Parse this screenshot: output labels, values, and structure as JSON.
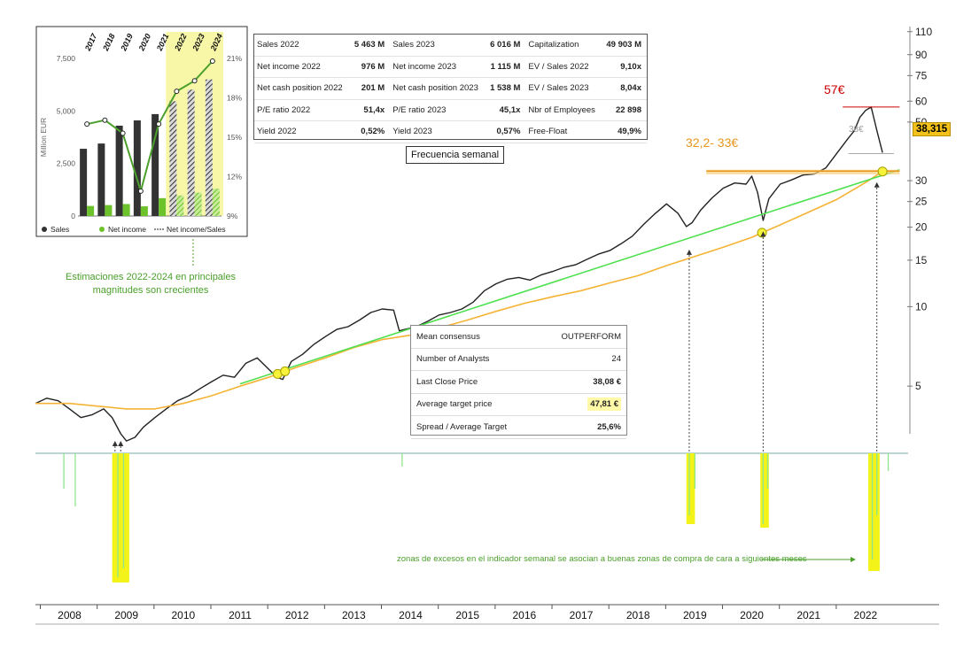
{
  "chart_data": [
    {
      "type": "line",
      "title": "",
      "frequency_label": "Frecuencia semanal",
      "y_scale": "log",
      "ylim": [
        3.3,
        115
      ],
      "xlim": [
        2007.4,
        2022.75
      ],
      "x_ticks": [
        "2008",
        "2009",
        "2010",
        "2011",
        "2012",
        "2013",
        "2014",
        "2015",
        "2016",
        "2017",
        "2018",
        "2019",
        "2020",
        "2021",
        "2022"
      ],
      "y_ticks": [
        "110",
        "90",
        "75",
        "60",
        "50",
        "30",
        "25",
        "20",
        "15",
        "10",
        "5"
      ],
      "series": [
        {
          "role": "price",
          "color": "#222222",
          "x": [
            2007.4,
            2007.6,
            2007.8,
            2008.0,
            2008.2,
            2008.4,
            2008.6,
            2008.75,
            2008.9,
            2009.0,
            2009.15,
            2009.3,
            2009.5,
            2009.7,
            2009.9,
            2010.1,
            2010.3,
            2010.5,
            2010.7,
            2010.9,
            2011.1,
            2011.3,
            2011.5,
            2011.65,
            2011.75,
            2011.9,
            2012.1,
            2012.3,
            2012.5,
            2012.7,
            2012.9,
            2013.1,
            2013.3,
            2013.5,
            2013.7,
            2013.8,
            2013.9,
            2014.1,
            2014.3,
            2014.5,
            2014.7,
            2014.9,
            2015.1,
            2015.3,
            2015.5,
            2015.7,
            2015.9,
            2016.1,
            2016.3,
            2016.5,
            2016.7,
            2016.9,
            2017.1,
            2017.3,
            2017.5,
            2017.7,
            2017.9,
            2018.1,
            2018.3,
            2018.5,
            2018.7,
            2018.85,
            2018.95,
            2019.1,
            2019.3,
            2019.5,
            2019.7,
            2019.9,
            2020.0,
            2020.1,
            2020.2,
            2020.3,
            2020.5,
            2020.7,
            2020.9,
            2021.1,
            2021.3,
            2021.5,
            2021.7,
            2021.8,
            2021.9,
            2022.0,
            2022.1,
            2022.2,
            2022.3
          ],
          "y": [
            4.3,
            4.5,
            4.4,
            4.1,
            3.8,
            3.9,
            4.1,
            3.8,
            3.3,
            3.1,
            3.2,
            3.5,
            3.8,
            4.1,
            4.4,
            4.6,
            4.9,
            5.2,
            5.5,
            5.4,
            6.1,
            6.4,
            5.8,
            5.4,
            5.3,
            6.2,
            6.6,
            7.2,
            7.7,
            8.2,
            8.4,
            8.9,
            9.5,
            9.8,
            9.7,
            8.1,
            8.2,
            8.4,
            8.8,
            9.3,
            9.5,
            9.8,
            10.4,
            11.5,
            12.2,
            12.7,
            12.9,
            12.6,
            13.2,
            13.6,
            14.1,
            14.4,
            15.1,
            15.8,
            16.3,
            17.3,
            18.5,
            20.5,
            22.5,
            24.5,
            22.6,
            20.1,
            20.8,
            23.2,
            25.8,
            28.1,
            29.4,
            29.1,
            31.2,
            27.1,
            21.2,
            25.6,
            29.1,
            30.2,
            31.5,
            31.8,
            33.5,
            38.2,
            43.5,
            46.2,
            52.1,
            55.3,
            57.0,
            46.5,
            38.3
          ]
        },
        {
          "role": "long moving average",
          "color": "#f5b335",
          "x": [
            2007.4,
            2008.0,
            2008.5,
            2009.0,
            2009.5,
            2010.0,
            2010.5,
            2011.0,
            2011.5,
            2012.0,
            2012.5,
            2013.0,
            2013.5,
            2014.0,
            2014.5,
            2015.0,
            2015.5,
            2016.0,
            2016.5,
            2017.0,
            2017.5,
            2018.0,
            2018.5,
            2019.0,
            2019.5,
            2020.0,
            2020.5,
            2021.0,
            2021.5,
            2022.0,
            2022.3
          ],
          "y": [
            4.3,
            4.3,
            4.2,
            4.1,
            4.1,
            4.3,
            4.6,
            5.0,
            5.4,
            5.9,
            6.4,
            7.0,
            7.5,
            7.8,
            8.3,
            8.9,
            9.6,
            10.3,
            10.9,
            11.5,
            12.3,
            13.1,
            14.3,
            15.5,
            16.8,
            18.3,
            20.4,
            22.8,
            25.5,
            29.5,
            32.5
          ]
        },
        {
          "role": "long-term trend line",
          "color": "#4fe04f",
          "x": [
            2011.0,
            2022.6
          ],
          "y": [
            5.1,
            33.0
          ]
        }
      ],
      "annotations": {
        "resistance": "57€",
        "support_zone": "32,2- 33€",
        "level_mid": "38€",
        "last_price_tag": "38,315"
      }
    },
    {
      "type": "bar",
      "xlabel": "",
      "ylabel": "Million EUR",
      "categories": [
        "2017",
        "2018",
        "2019",
        "2020",
        "2021",
        "2022",
        "2023",
        "2024"
      ],
      "estimate_from": "2022",
      "y_ticks": [
        "7,500",
        "5,000",
        "2,500",
        "0"
      ],
      "y2_ticks": [
        "21%",
        "18%",
        "15%",
        "12%",
        "9%"
      ],
      "ylim": [
        0,
        7500
      ],
      "y2lim": [
        9,
        21
      ],
      "series": [
        {
          "name": "Sales",
          "color": "#333333",
          "values": [
            3200,
            3450,
            4300,
            4550,
            4850,
            5463,
            6016,
            6500
          ]
        },
        {
          "name": "Net income",
          "color": "#6cc22a",
          "values": [
            480,
            520,
            570,
            460,
            850,
            976,
            1115,
            1300
          ]
        },
        {
          "name": "Net income/Sales",
          "color": "#4aa02a",
          "values": [
            16.0,
            16.3,
            15.3,
            10.9,
            16.0,
            18.5,
            19.3,
            20.8
          ]
        }
      ],
      "legend": [
        "Sales",
        "Net income",
        "Net income/Sales"
      ]
    }
  ],
  "fundamentals": [
    [
      "Sales 2022",
      "5 463 M",
      "Sales 2023",
      "6 016 M",
      "Capitalization",
      "49 903 M"
    ],
    [
      "Net income 2022",
      "976 M",
      "Net income 2023",
      "1 115 M",
      "EV / Sales 2022",
      "9,10x"
    ],
    [
      "Net cash position 2022",
      "201 M",
      "Net cash position 2023",
      "1 538 M",
      "EV / Sales 2023",
      "8,04x"
    ],
    [
      "P/E ratio 2022",
      "51,4x",
      "P/E ratio 2023",
      "45,1x",
      "Nbr of Employees",
      "22 898"
    ],
    [
      "Yield 2022",
      "0,52%",
      "Yield 2023",
      "0,57%",
      "Free-Float",
      "49,9%"
    ]
  ],
  "consensus": {
    "mean_label": "Mean consensus",
    "mean_value": "OUTPERFORM",
    "analysts_label": "Number of Analysts",
    "analysts_value": "24",
    "close_label": "Last Close Price",
    "close_value": "38,08 €",
    "target_label": "Average target price",
    "target_value": "47,81 €",
    "spread_label": "Spread / Average Target",
    "spread_value": "25,6%"
  },
  "notes": {
    "estimates": "Estimaciones 2022-2024 en principales magnitudes son crecientes",
    "excess_zones": "zonas de excesos en el indicador semanal se asocian a buenas zonas de compra de cara a siguientes meses"
  },
  "colors": {
    "highlight_yellow": "#f3f31a",
    "indicator_green": "#8de68d",
    "resistance_red": "#cc0000",
    "support_orange": "#e8961e"
  }
}
